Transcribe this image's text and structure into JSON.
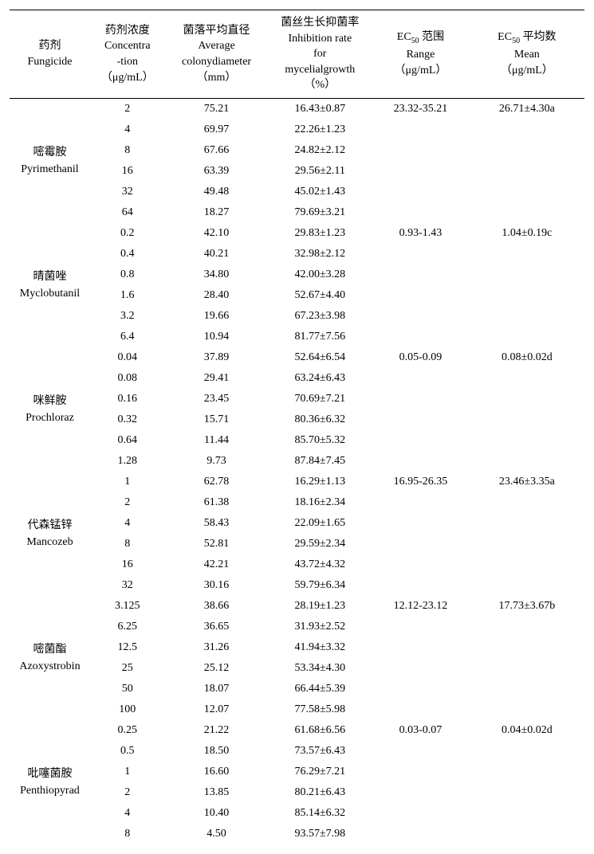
{
  "columns": {
    "fungicide": {
      "zh": "药剂",
      "en": "Fungicide"
    },
    "conc": {
      "zh": "药剂浓度",
      "en1": "Concentra",
      "en2": "-tion",
      "unit": "（μg/mL）"
    },
    "diameter": {
      "zh": "菌落平均直径",
      "en1": "Average",
      "en2": "colonydiameter",
      "unit": "（mm）"
    },
    "inhib": {
      "zh": "菌丝生长抑菌率",
      "en1": "Inhibition rate",
      "en2": "for",
      "en3": "mycelialgrowth",
      "unit": "（%）"
    },
    "ec50range": {
      "zh": " 范围",
      "en": "Range",
      "unit": "（μg/mL）",
      "prefix": "EC",
      "sub": "50"
    },
    "ec50mean": {
      "zh": " 平均数",
      "en": "Mean",
      "unit": "（μg/mL）",
      "prefix": "EC",
      "sub": "50"
    }
  },
  "groups": [
    {
      "name_zh": "嘧霉胺",
      "name_en": "Pyrimethanil",
      "ec50_range": "23.32-35.21",
      "ec50_mean": "26.71±4.30a",
      "rows": [
        {
          "c": "2",
          "d": "75.21",
          "i": "16.43±0.87"
        },
        {
          "c": "4",
          "d": "69.97",
          "i": "22.26±1.23"
        },
        {
          "c": "8",
          "d": "67.66",
          "i": "24.82±2.12"
        },
        {
          "c": "16",
          "d": "63.39",
          "i": "29.56±2.11"
        },
        {
          "c": "32",
          "d": "49.48",
          "i": "45.02±1.43"
        },
        {
          "c": "64",
          "d": "18.27",
          "i": "79.69±3.21"
        }
      ]
    },
    {
      "name_zh": "晴菌唑",
      "name_en": "Myclobutanil",
      "ec50_range": "0.93-1.43",
      "ec50_mean": "1.04±0.19c",
      "rows": [
        {
          "c": "0.2",
          "d": "42.10",
          "i": "29.83±1.23"
        },
        {
          "c": "0.4",
          "d": "40.21",
          "i": "32.98±2.12"
        },
        {
          "c": "0.8",
          "d": "34.80",
          "i": "42.00±3.28"
        },
        {
          "c": "1.6",
          "d": "28.40",
          "i": "52.67±4.40"
        },
        {
          "c": "3.2",
          "d": "19.66",
          "i": "67.23±3.98"
        },
        {
          "c": "6.4",
          "d": "10.94",
          "i": "81.77±7.56"
        }
      ]
    },
    {
      "name_zh": "咪鲜胺",
      "name_en": "Prochloraz",
      "ec50_range": "0.05-0.09",
      "ec50_mean": "0.08±0.02d",
      "rows": [
        {
          "c": "0.04",
          "d": "37.89",
          "i": "52.64±6.54"
        },
        {
          "c": "0.08",
          "d": "29.41",
          "i": "63.24±6.43"
        },
        {
          "c": "0.16",
          "d": "23.45",
          "i": "70.69±7.21"
        },
        {
          "c": "0.32",
          "d": "15.71",
          "i": "80.36±6.32"
        },
        {
          "c": "0.64",
          "d": "11.44",
          "i": "85.70±5.32"
        },
        {
          "c": "1.28",
          "d": "9.73",
          "i": "87.84±7.45"
        }
      ]
    },
    {
      "name_zh": "代森锰锌",
      "name_en": "Mancozeb",
      "ec50_range": "16.95-26.35",
      "ec50_mean": "23.46±3.35a",
      "rows": [
        {
          "c": "1",
          "d": "62.78",
          "i": "16.29±1.13"
        },
        {
          "c": "2",
          "d": "61.38",
          "i": "18.16±2.34"
        },
        {
          "c": "4",
          "d": "58.43",
          "i": "22.09±1.65"
        },
        {
          "c": "8",
          "d": "52.81",
          "i": "29.59±2.34"
        },
        {
          "c": "16",
          "d": "42.21",
          "i": "43.72±4.32"
        },
        {
          "c": "32",
          "d": "30.16",
          "i": "59.79±6.34"
        }
      ]
    },
    {
      "name_zh": "嘧菌酯",
      "name_en": "Azoxystrobin",
      "ec50_range": "12.12-23.12",
      "ec50_mean": "17.73±3.67b",
      "rows": [
        {
          "c": "3.125",
          "d": "38.66",
          "i": "28.19±1.23"
        },
        {
          "c": "6.25",
          "d": "36.65",
          "i": "31.93±2.52"
        },
        {
          "c": "12.5",
          "d": "31.26",
          "i": "41.94±3.32"
        },
        {
          "c": "25",
          "d": "25.12",
          "i": "53.34±4.30"
        },
        {
          "c": "50",
          "d": "18.07",
          "i": "66.44±5.39"
        },
        {
          "c": "100",
          "d": "12.07",
          "i": "77.58±5.98"
        }
      ]
    },
    {
      "name_zh": "吡噻菌胺",
      "name_en": "Penthiopyrad",
      "ec50_range": "0.03-0.07",
      "ec50_mean": "0.04±0.02d",
      "rows": [
        {
          "c": "0.25",
          "d": "21.22",
          "i": "61.68±6.56"
        },
        {
          "c": "0.5",
          "d": "18.50",
          "i": "73.57±6.43"
        },
        {
          "c": "1",
          "d": "16.60",
          "i": "76.29±7.21"
        },
        {
          "c": "2",
          "d": "13.85",
          "i": "80.21±6.43"
        },
        {
          "c": "4",
          "d": "10.40",
          "i": "85.14±6.32"
        },
        {
          "c": "8",
          "d": "4.50",
          "i": "93.57±7.98"
        }
      ]
    }
  ]
}
